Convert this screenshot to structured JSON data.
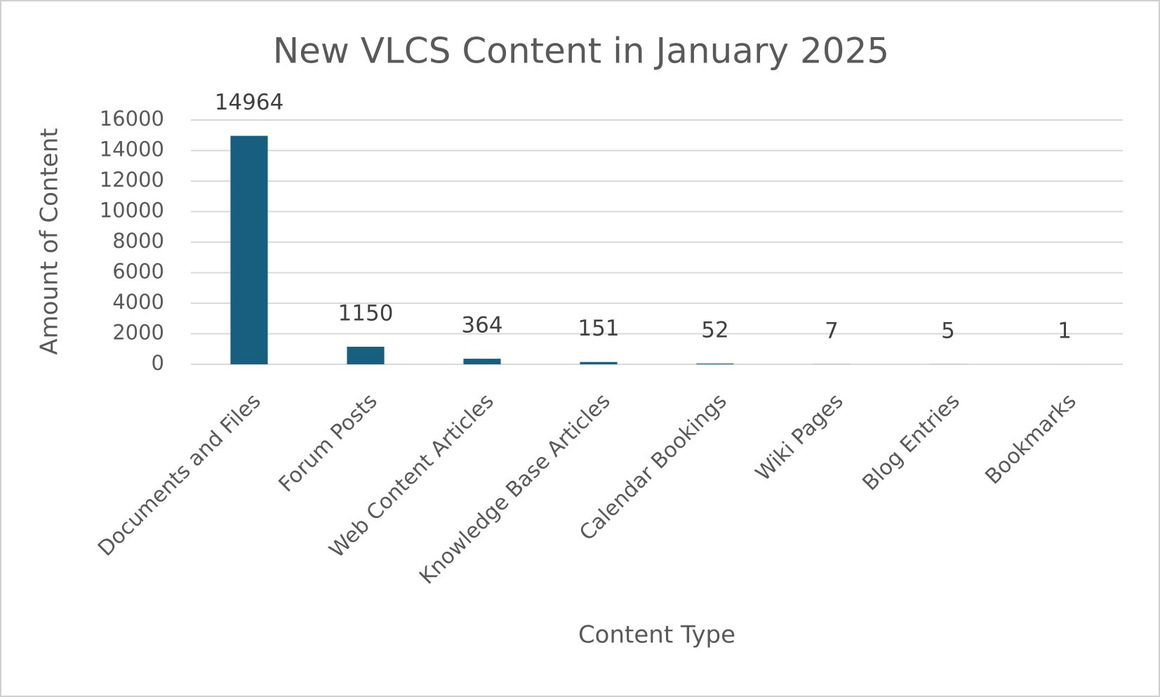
{
  "chart_data": {
    "type": "bar",
    "title": "New VLCS Content in January 2025",
    "x_label": "Content Type",
    "y_label": "Amount of Content",
    "categories": [
      "Documents and Files",
      "Forum Posts",
      "Web Content Articles",
      "Knowledge Base Articles",
      "Calendar Bookings",
      "Wiki Pages",
      "Blog Entries",
      "Bookmarks"
    ],
    "values": [
      14964,
      1150,
      364,
      151,
      52,
      7,
      5,
      1
    ],
    "color": "#175e7f",
    "ylim": [
      0,
      16000
    ],
    "yticks": [
      0,
      2000,
      4000,
      6000,
      8000,
      10000,
      12000,
      14000,
      16000
    ],
    "grid": true
  }
}
